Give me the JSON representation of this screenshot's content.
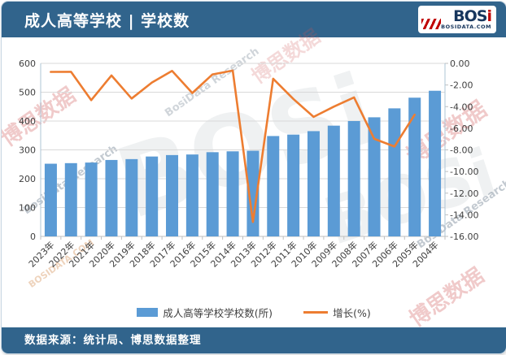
{
  "header": {
    "title": "成人高等学校 | 学校数"
  },
  "logo": {
    "brand": "BOS",
    "accent": "i",
    "domain": "BOSIDATA.COM"
  },
  "watermarks": {
    "cn": "博思数据",
    "en": "BosiData Research",
    "brand": "BOSi",
    "site": "BOSIDATA.COM"
  },
  "footer": {
    "source": "数据来源：统计局、博思数据整理"
  },
  "chart_data": {
    "type": "bar+line",
    "categories": [
      "2023年",
      "2022年",
      "2021年",
      "2020年",
      "2019年",
      "2018年",
      "2017年",
      "2016年",
      "2015年",
      "2014年",
      "2013年",
      "2012年",
      "2011年",
      "2010年",
      "2009年",
      "2008年",
      "2007年",
      "2006年",
      "2005年",
      "2004年"
    ],
    "series": [
      {
        "name": "成人高等学校学校数(所)",
        "type": "bar",
        "axis": "left",
        "color": "#5B9BD5",
        "values": [
          252,
          254,
          256,
          265,
          268,
          277,
          282,
          284,
          292,
          295,
          297,
          348,
          353,
          365,
          384,
          400,
          413,
          444,
          481,
          505
        ]
      },
      {
        "name": "增长(%)",
        "type": "line",
        "axis": "right",
        "color": "#ED7D31",
        "values": [
          -0.79,
          -0.78,
          -3.4,
          -1.12,
          -3.25,
          -1.77,
          -0.7,
          -2.74,
          -1.02,
          -0.67,
          -14.66,
          -1.42,
          -3.29,
          -4.95,
          -4.0,
          -3.15,
          -6.98,
          -7.69,
          -4.75,
          null
        ]
      }
    ],
    "left_axis": {
      "range": [
        0,
        600
      ],
      "ticks": [
        "600",
        "500",
        "400",
        "300",
        "200",
        "100",
        "0"
      ]
    },
    "right_axis": {
      "range": [
        0,
        -16
      ],
      "ticks": [
        "0.00",
        "-2.00",
        "-4.00",
        "-6.00",
        "-8.00",
        "-10.00",
        "-12.00",
        "-14.00",
        "-16.00"
      ]
    },
    "grid": true,
    "legend_position": "bottom"
  }
}
